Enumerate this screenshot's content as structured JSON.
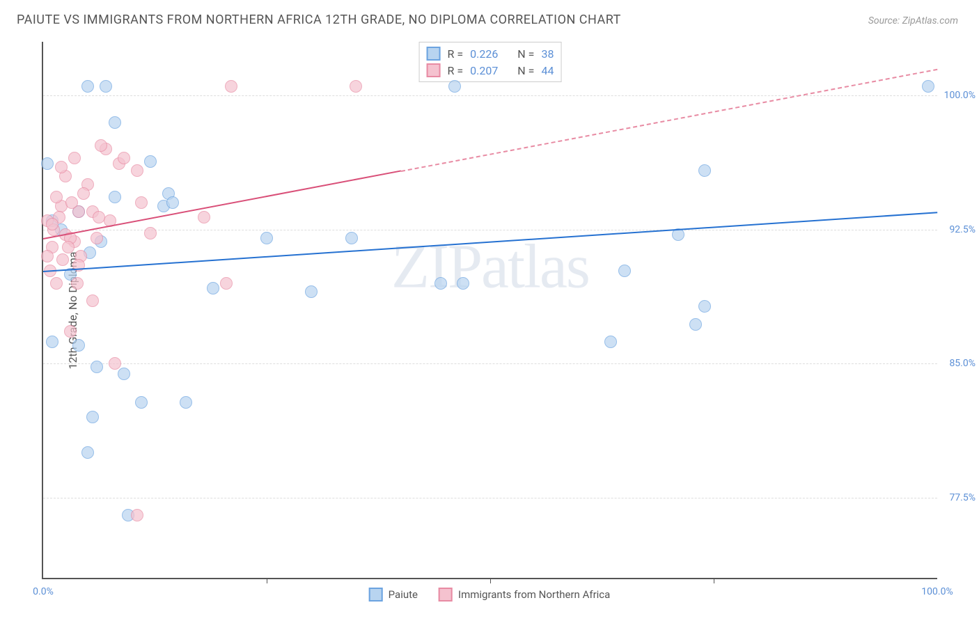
{
  "title": "PAIUTE VS IMMIGRANTS FROM NORTHERN AFRICA 12TH GRADE, NO DIPLOMA CORRELATION CHART",
  "source": "Source: ZipAtlas.com",
  "watermark_zip": "ZIP",
  "watermark_atlas": "atlas",
  "ylabel": "12th Grade, No Diploma",
  "chart": {
    "type": "scatter",
    "background_color": "#ffffff",
    "grid_color": "#dddddd",
    "axis_color": "#555555",
    "xlim": [
      0,
      100
    ],
    "ylim": [
      73,
      103
    ],
    "yticks": [
      77.5,
      85.0,
      92.5,
      100.0
    ],
    "ytick_labels": [
      "77.5%",
      "85.0%",
      "92.5%",
      "100.0%"
    ],
    "xtick_labels": [
      "0.0%",
      "100.0%"
    ],
    "xtick_positions": [
      0,
      100
    ],
    "xticks_minor": [
      25,
      50,
      75
    ],
    "series": [
      {
        "name": "Paiute",
        "color_fill": "#b8d4f0",
        "color_stroke": "#6ba3e0",
        "R": "0.226",
        "N": "38",
        "trend": {
          "x1": 0,
          "y1": 90.2,
          "x2": 100,
          "y2": 93.5,
          "color": "#2571d1"
        },
        "points": [
          [
            5,
            100.5
          ],
          [
            7,
            100.5
          ],
          [
            8,
            98.5
          ],
          [
            0.5,
            96.2
          ],
          [
            12,
            96.3
          ],
          [
            14,
            94.5
          ],
          [
            8,
            94.3
          ],
          [
            1,
            93
          ],
          [
            6.5,
            91.8
          ],
          [
            13.5,
            93.8
          ],
          [
            14.5,
            94
          ],
          [
            25,
            92
          ],
          [
            34.5,
            92
          ],
          [
            47,
            89.5
          ],
          [
            44.5,
            89.5
          ],
          [
            46,
            100.5
          ],
          [
            30,
            89
          ],
          [
            19,
            89.2
          ],
          [
            4,
            86
          ],
          [
            9,
            84.4
          ],
          [
            6,
            84.8
          ],
          [
            11,
            82.8
          ],
          [
            16,
            82.8
          ],
          [
            5.5,
            82
          ],
          [
            5,
            80
          ],
          [
            9.5,
            76.5
          ],
          [
            1,
            86.2
          ],
          [
            71,
            92.2
          ],
          [
            74,
            95.8
          ],
          [
            65,
            90.2
          ],
          [
            63.5,
            86.2
          ],
          [
            74,
            88.2
          ],
          [
            73,
            87.2
          ],
          [
            99,
            100.5
          ],
          [
            3,
            90
          ],
          [
            2,
            92.5
          ],
          [
            4,
            93.5
          ],
          [
            5.2,
            91.2
          ]
        ]
      },
      {
        "name": "Immigrants from Northern Africa",
        "color_fill": "#f5c2cf",
        "color_stroke": "#e88ba3",
        "R": "0.207",
        "N": "44",
        "trend_solid": {
          "x1": 0,
          "y1": 92.0,
          "x2": 40,
          "y2": 95.8,
          "color": "#d94f78"
        },
        "trend_dashed": {
          "x1": 40,
          "y1": 95.8,
          "x2": 100,
          "y2": 101.5,
          "color": "#e88ba3"
        },
        "points": [
          [
            21,
            100.5
          ],
          [
            35,
            100.5
          ],
          [
            7,
            97
          ],
          [
            6.5,
            97.2
          ],
          [
            3.5,
            96.5
          ],
          [
            8.5,
            96.2
          ],
          [
            10.5,
            95.8
          ],
          [
            4,
            93.5
          ],
          [
            2,
            93.8
          ],
          [
            0.5,
            93
          ],
          [
            1.2,
            92.5
          ],
          [
            2.5,
            92.2
          ],
          [
            1,
            91.5
          ],
          [
            3.5,
            91.8
          ],
          [
            2.2,
            90.8
          ],
          [
            4.2,
            91
          ],
          [
            0.8,
            90.2
          ],
          [
            1.5,
            89.5
          ],
          [
            5.5,
            88.5
          ],
          [
            18,
            93.2
          ],
          [
            11,
            94
          ],
          [
            20.5,
            89.5
          ],
          [
            12,
            92.3
          ],
          [
            3,
            86.8
          ],
          [
            8,
            85
          ],
          [
            10.5,
            76.5
          ],
          [
            1.8,
            93.2
          ],
          [
            3.2,
            94
          ],
          [
            5,
            95
          ],
          [
            2.5,
            95.5
          ],
          [
            4.5,
            94.5
          ],
          [
            6,
            92
          ],
          [
            7.5,
            93
          ],
          [
            9,
            96.5
          ],
          [
            2,
            96
          ],
          [
            0.5,
            91
          ],
          [
            1,
            92.8
          ],
          [
            3,
            92
          ],
          [
            5.5,
            93.5
          ],
          [
            4,
            90.5
          ],
          [
            2.8,
            91.5
          ],
          [
            1.5,
            94.3
          ],
          [
            6.2,
            93.2
          ],
          [
            3.8,
            89.5
          ]
        ]
      }
    ]
  },
  "legend_bottom": [
    {
      "label": "Paiute",
      "fill": "#b8d4f0",
      "stroke": "#6ba3e0"
    },
    {
      "label": "Immigrants from Northern Africa",
      "fill": "#f5c2cf",
      "stroke": "#e88ba3"
    }
  ],
  "stats_labels": {
    "R": "R =",
    "N": "N ="
  }
}
